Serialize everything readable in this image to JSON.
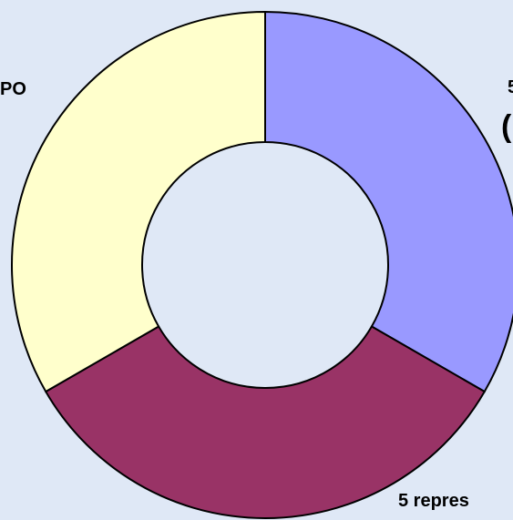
{
  "chart_data": {
    "type": "donut",
    "categories": [
      [
        "5",
        "("
      ],
      [
        "5 repres"
      ],
      [
        "PO"
      ]
    ],
    "values": [
      33.3,
      33.3,
      33.3
    ],
    "colors": [
      "#9999ff",
      "#993366",
      "#ffffcc"
    ]
  }
}
